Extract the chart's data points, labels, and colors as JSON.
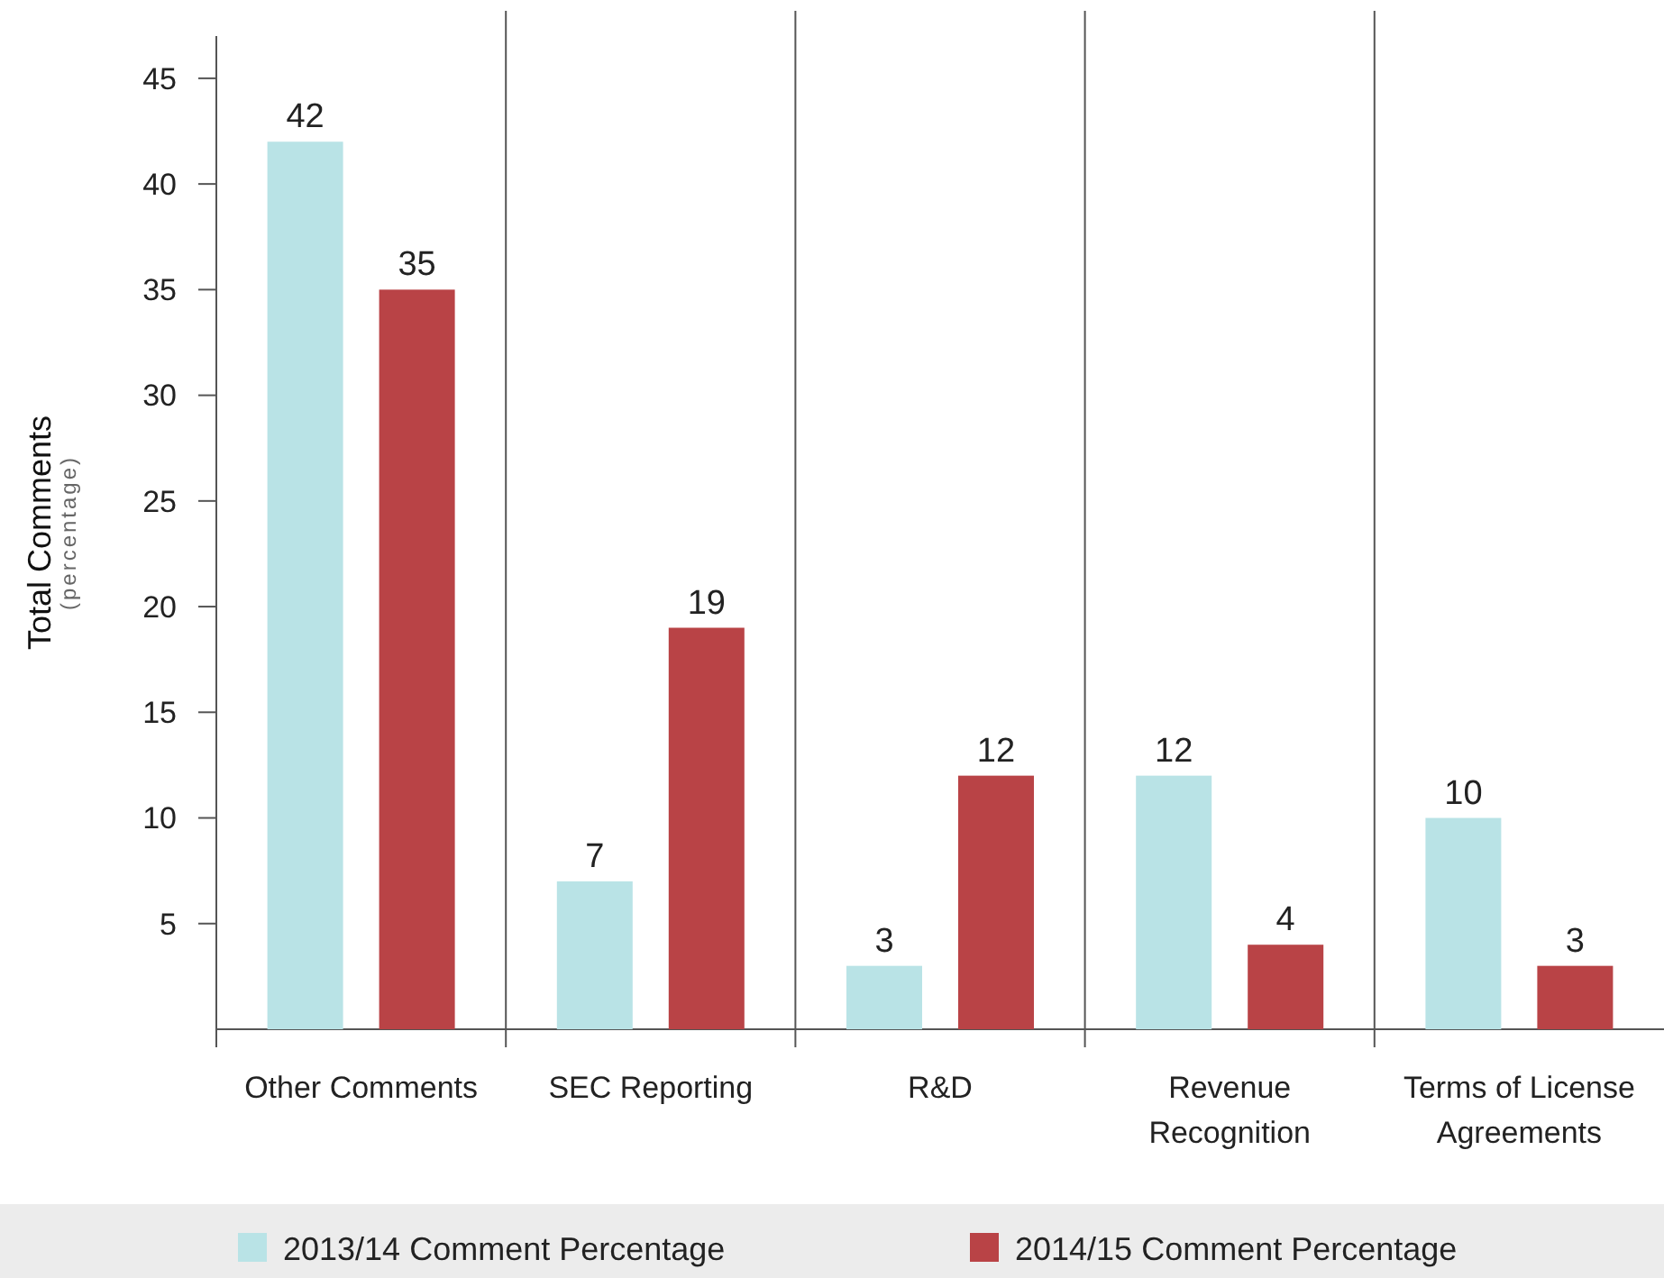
{
  "chart_data": {
    "type": "bar",
    "ylabel": "Total Comments\n(percentage)",
    "categories": [
      "Other Comments",
      "SEC Reporting",
      "R&D",
      "Revenue Recognition",
      "Terms of License Agreements"
    ],
    "series": [
      {
        "name": "2013/14 Comment Percentage",
        "color": "#b9e3e6",
        "values": [
          42,
          7,
          3,
          12,
          10
        ]
      },
      {
        "name": "2014/15 Comment Percentage",
        "color": "#b94346",
        "values": [
          35,
          19,
          12,
          4,
          3
        ]
      }
    ],
    "ylim": [
      0,
      47
    ],
    "yticks": [
      5,
      10,
      15,
      20,
      25,
      30,
      35,
      40,
      45
    ],
    "legend": "bottom",
    "data_labels": true
  }
}
